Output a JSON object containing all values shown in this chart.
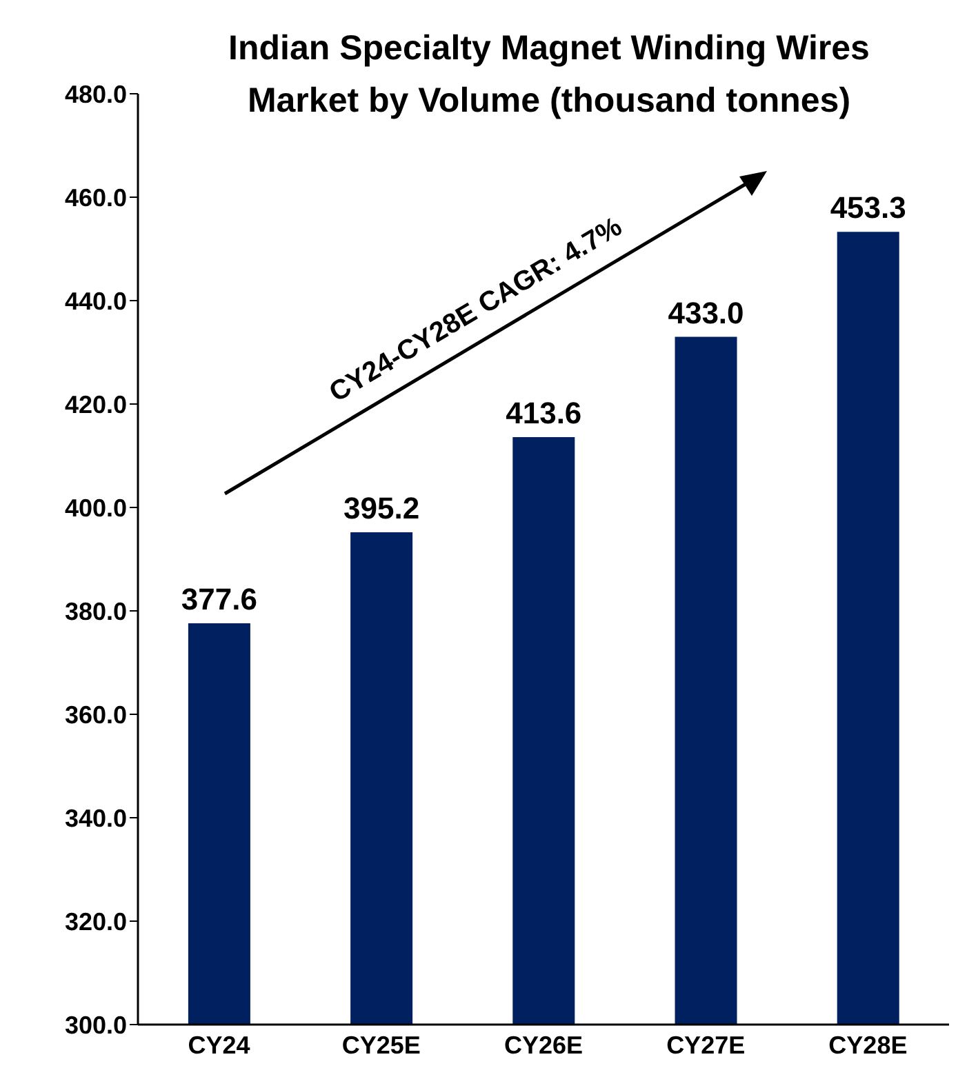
{
  "chart_data": {
    "type": "bar",
    "title": "Indian Specialty Magnet Winding Wires Market by Volume (thousand tonnes)",
    "categories": [
      "CY24",
      "CY25E",
      "CY26E",
      "CY27E",
      "CY28E"
    ],
    "values": [
      377.6,
      395.2,
      413.6,
      433.0,
      453.3
    ],
    "value_labels": [
      "377.6",
      "395.2",
      "413.6",
      "433.0",
      "453.3"
    ],
    "color": "#002060",
    "ylim": [
      300,
      480
    ],
    "yticks": [
      {
        "value": 300,
        "label": "300.0"
      },
      {
        "value": 320,
        "label": "320.0"
      },
      {
        "value": 340,
        "label": "340.0"
      },
      {
        "value": 360,
        "label": "360.0"
      },
      {
        "value": 380,
        "label": "380.0"
      },
      {
        "value": 400,
        "label": "400.0"
      },
      {
        "value": 420,
        "label": "420.0"
      },
      {
        "value": 440,
        "label": "440.0"
      },
      {
        "value": 460,
        "label": "460.0"
      },
      {
        "value": 480,
        "label": "480.0"
      }
    ],
    "grid": false,
    "legend": false,
    "annotations": [
      "CY24-CY28E CAGR: 4.7%"
    ]
  }
}
